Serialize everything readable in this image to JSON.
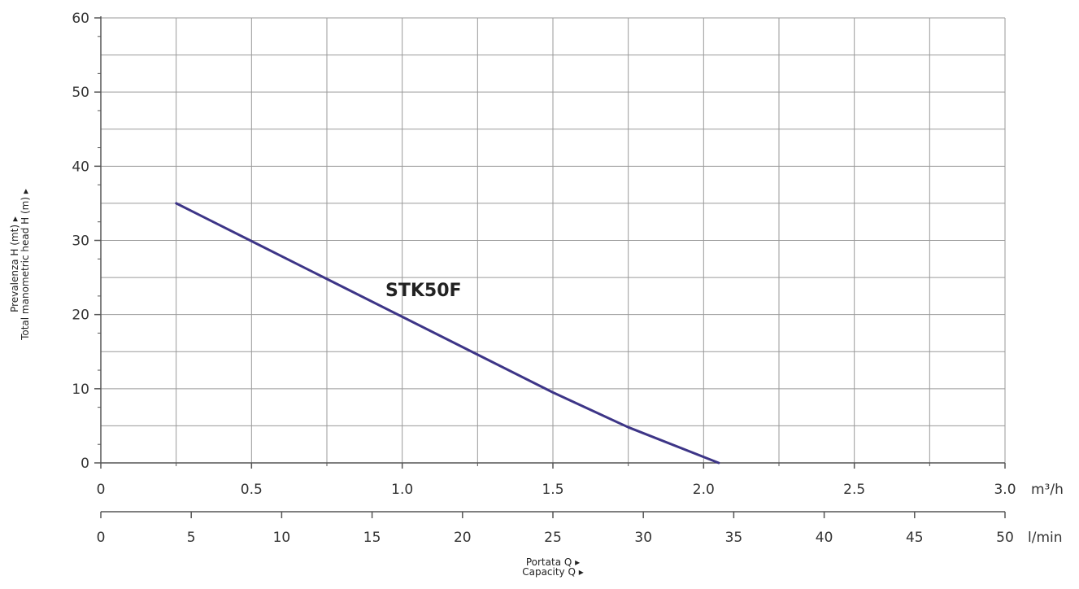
{
  "chart_data": {
    "type": "line",
    "title": "",
    "ylabel": [
      "Prevalenza H (mt) ▸",
      "Total manometric head H (m) ▸"
    ],
    "xlabel": [
      "Portata Q ▸",
      "Capacity Q ▸"
    ],
    "x_axis_primary": {
      "unit": "m³/h",
      "ticks": [
        "0",
        "0.5",
        "1.0",
        "1.5",
        "2.0",
        "2.5",
        "3.0"
      ],
      "range": [
        0,
        3.0
      ]
    },
    "x_axis_secondary": {
      "unit": "l/min",
      "ticks": [
        "0",
        "5",
        "10",
        "15",
        "20",
        "25",
        "30",
        "35",
        "40",
        "45",
        "50"
      ],
      "range": [
        0,
        50
      ]
    },
    "y_axis": {
      "ticks": [
        "0",
        "10",
        "20",
        "30",
        "40",
        "50",
        "60"
      ],
      "range": [
        0,
        60
      ]
    },
    "grid": true,
    "series": [
      {
        "name": "STK50F",
        "color": "#3d3587",
        "x": [
          0.25,
          0.5,
          0.75,
          1.0,
          1.25,
          1.5,
          1.75,
          2.05
        ],
        "y": [
          35,
          29.9,
          24.8,
          19.7,
          14.6,
          9.5,
          4.8,
          0
        ]
      }
    ]
  }
}
